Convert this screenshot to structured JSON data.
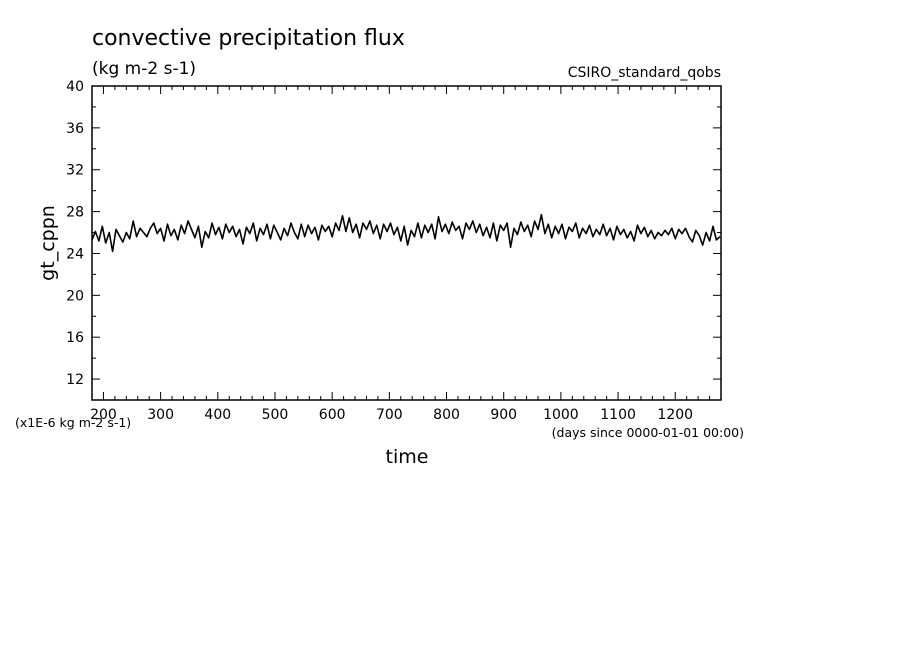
{
  "chart_data": {
    "type": "line",
    "title": "convective precipitation flux",
    "subtitle": "(kg m-2 s-1)",
    "dataset_label": "CSIRO_standard_qobs",
    "ylabel": "gt_cppn",
    "xlabel": "time",
    "x_units": "(days since 0000-01-01 00:00)",
    "y_units": "(x1E-6 kg m-2 s-1)",
    "xlim": [
      180,
      1280
    ],
    "ylim": [
      10,
      40
    ],
    "x_ticks": [
      200,
      300,
      400,
      500,
      600,
      700,
      800,
      900,
      1000,
      1100,
      1200
    ],
    "x_tick_labels": [
      "200",
      "300",
      "400",
      "500",
      "600",
      "700",
      "800",
      "900",
      "1000",
      "1100",
      "1200"
    ],
    "y_ticks": [
      12,
      16,
      20,
      24,
      28,
      32,
      36,
      40
    ],
    "y_tick_labels": [
      "12",
      "16",
      "20",
      "24",
      "28",
      "32",
      "36",
      "40"
    ],
    "grid": false,
    "series": [
      {
        "values": [
          [
            180,
            25.3
          ],
          [
            186,
            26.1
          ],
          [
            192,
            25.2
          ],
          [
            198,
            26.6
          ],
          [
            204,
            25.0
          ],
          [
            210,
            26.0
          ],
          [
            216,
            24.2
          ],
          [
            222,
            26.3
          ],
          [
            228,
            25.7
          ],
          [
            234,
            25.1
          ],
          [
            240,
            26.0
          ],
          [
            246,
            25.4
          ],
          [
            252,
            27.1
          ],
          [
            258,
            25.6
          ],
          [
            264,
            26.4
          ],
          [
            270,
            26.0
          ],
          [
            276,
            25.6
          ],
          [
            282,
            26.4
          ],
          [
            288,
            26.9
          ],
          [
            294,
            25.9
          ],
          [
            300,
            26.4
          ],
          [
            306,
            25.2
          ],
          [
            312,
            26.8
          ],
          [
            318,
            25.7
          ],
          [
            324,
            26.3
          ],
          [
            330,
            25.3
          ],
          [
            336,
            26.7
          ],
          [
            342,
            25.9
          ],
          [
            348,
            27.1
          ],
          [
            354,
            26.3
          ],
          [
            360,
            25.5
          ],
          [
            366,
            26.6
          ],
          [
            372,
            24.6
          ],
          [
            378,
            26.1
          ],
          [
            384,
            25.5
          ],
          [
            390,
            26.9
          ],
          [
            396,
            25.8
          ],
          [
            402,
            26.5
          ],
          [
            408,
            25.4
          ],
          [
            414,
            26.8
          ],
          [
            420,
            26.0
          ],
          [
            426,
            26.6
          ],
          [
            432,
            25.6
          ],
          [
            438,
            26.3
          ],
          [
            444,
            24.9
          ],
          [
            450,
            26.5
          ],
          [
            456,
            25.9
          ],
          [
            462,
            26.9
          ],
          [
            468,
            25.2
          ],
          [
            474,
            26.4
          ],
          [
            480,
            25.8
          ],
          [
            486,
            26.8
          ],
          [
            492,
            25.4
          ],
          [
            498,
            26.7
          ],
          [
            504,
            26.0
          ],
          [
            510,
            25.3
          ],
          [
            516,
            26.4
          ],
          [
            522,
            25.7
          ],
          [
            528,
            26.9
          ],
          [
            534,
            26.0
          ],
          [
            540,
            25.4
          ],
          [
            546,
            26.8
          ],
          [
            552,
            25.6
          ],
          [
            558,
            26.7
          ],
          [
            564,
            25.9
          ],
          [
            570,
            26.5
          ],
          [
            576,
            25.3
          ],
          [
            582,
            26.7
          ],
          [
            588,
            26.1
          ],
          [
            594,
            26.6
          ],
          [
            600,
            25.6
          ],
          [
            606,
            26.9
          ],
          [
            612,
            26.2
          ],
          [
            618,
            27.6
          ],
          [
            624,
            26.1
          ],
          [
            630,
            27.4
          ],
          [
            636,
            26.0
          ],
          [
            642,
            26.8
          ],
          [
            648,
            25.5
          ],
          [
            654,
            26.9
          ],
          [
            660,
            26.3
          ],
          [
            666,
            27.1
          ],
          [
            672,
            25.9
          ],
          [
            678,
            26.7
          ],
          [
            684,
            25.4
          ],
          [
            690,
            26.8
          ],
          [
            696,
            26.1
          ],
          [
            702,
            26.9
          ],
          [
            708,
            25.8
          ],
          [
            714,
            26.5
          ],
          [
            720,
            25.2
          ],
          [
            726,
            26.6
          ],
          [
            732,
            24.8
          ],
          [
            738,
            26.2
          ],
          [
            744,
            25.6
          ],
          [
            750,
            26.9
          ],
          [
            756,
            25.5
          ],
          [
            762,
            26.7
          ],
          [
            768,
            26.0
          ],
          [
            774,
            26.8
          ],
          [
            780,
            25.4
          ],
          [
            786,
            27.5
          ],
          [
            792,
            26.1
          ],
          [
            798,
            26.8
          ],
          [
            804,
            25.9
          ],
          [
            810,
            27.0
          ],
          [
            816,
            26.2
          ],
          [
            822,
            26.6
          ],
          [
            828,
            25.4
          ],
          [
            834,
            26.9
          ],
          [
            840,
            26.3
          ],
          [
            846,
            27.1
          ],
          [
            852,
            26.0
          ],
          [
            858,
            26.8
          ],
          [
            864,
            25.7
          ],
          [
            870,
            26.5
          ],
          [
            876,
            25.5
          ],
          [
            882,
            26.9
          ],
          [
            888,
            25.2
          ],
          [
            894,
            26.7
          ],
          [
            900,
            26.2
          ],
          [
            906,
            26.9
          ],
          [
            912,
            24.6
          ],
          [
            918,
            26.4
          ],
          [
            924,
            25.8
          ],
          [
            930,
            27.0
          ],
          [
            936,
            26.1
          ],
          [
            942,
            26.7
          ],
          [
            948,
            25.6
          ],
          [
            954,
            27.1
          ],
          [
            960,
            26.3
          ],
          [
            966,
            27.7
          ],
          [
            972,
            25.9
          ],
          [
            978,
            26.8
          ],
          [
            984,
            25.5
          ],
          [
            990,
            26.6
          ],
          [
            996,
            25.9
          ],
          [
            1002,
            26.8
          ],
          [
            1008,
            25.4
          ],
          [
            1014,
            26.5
          ],
          [
            1020,
            26.1
          ],
          [
            1026,
            26.9
          ],
          [
            1032,
            25.5
          ],
          [
            1038,
            26.4
          ],
          [
            1044,
            25.9
          ],
          [
            1050,
            26.7
          ],
          [
            1056,
            25.6
          ],
          [
            1062,
            26.3
          ],
          [
            1068,
            25.8
          ],
          [
            1074,
            26.8
          ],
          [
            1080,
            25.7
          ],
          [
            1086,
            26.4
          ],
          [
            1092,
            25.3
          ],
          [
            1098,
            26.6
          ],
          [
            1104,
            25.8
          ],
          [
            1110,
            26.3
          ],
          [
            1116,
            25.5
          ],
          [
            1122,
            26.1
          ],
          [
            1128,
            25.2
          ],
          [
            1134,
            26.7
          ],
          [
            1140,
            25.9
          ],
          [
            1146,
            26.5
          ],
          [
            1152,
            25.6
          ],
          [
            1158,
            26.2
          ],
          [
            1164,
            25.4
          ],
          [
            1170,
            26.0
          ],
          [
            1176,
            25.7
          ],
          [
            1182,
            26.2
          ],
          [
            1188,
            25.8
          ],
          [
            1194,
            26.4
          ],
          [
            1200,
            25.4
          ],
          [
            1206,
            26.3
          ],
          [
            1212,
            25.9
          ],
          [
            1218,
            26.4
          ],
          [
            1224,
            25.6
          ],
          [
            1230,
            25.1
          ],
          [
            1236,
            26.2
          ],
          [
            1242,
            25.7
          ],
          [
            1248,
            24.8
          ],
          [
            1254,
            26.0
          ],
          [
            1260,
            25.2
          ],
          [
            1266,
            26.6
          ],
          [
            1272,
            25.3
          ],
          [
            1278,
            25.6
          ]
        ]
      }
    ]
  }
}
